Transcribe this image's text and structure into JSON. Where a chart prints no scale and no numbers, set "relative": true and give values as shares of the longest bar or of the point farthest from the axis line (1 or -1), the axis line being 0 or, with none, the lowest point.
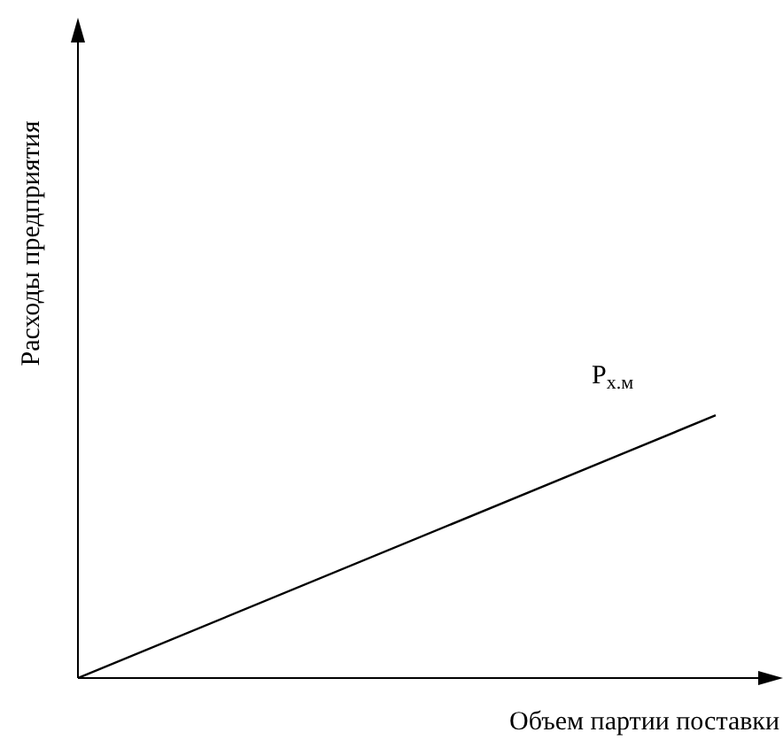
{
  "chart_data": {
    "type": "line",
    "relative": true,
    "xlabel": "Объем партии поставки",
    "ylabel": "Расходы предприятия",
    "categories": [
      null,
      null
    ],
    "series": [
      {
        "name": "Р$_{х.м}$",
        "color": "#000000",
        "values": [
          0,
          1
        ]
      }
    ]
  }
}
